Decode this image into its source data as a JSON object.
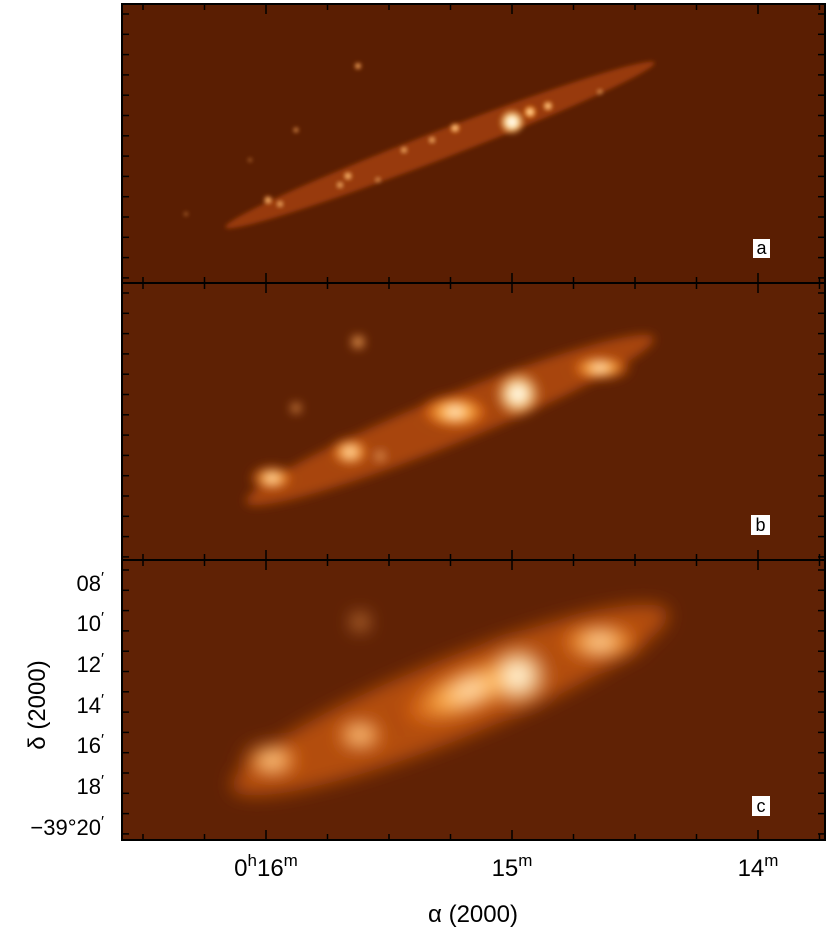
{
  "panels": [
    {
      "id": "a",
      "label": "a"
    },
    {
      "id": "b",
      "label": "b"
    },
    {
      "id": "c",
      "label": "c"
    }
  ],
  "axes": {
    "x_label": "α (2000)",
    "x_ticks": [
      {
        "text": "0",
        "sup1": "h",
        "mid": "16",
        "sup2": "m"
      },
      {
        "text": "15",
        "sup1": "m"
      },
      {
        "text": "14",
        "sup1": "m"
      }
    ],
    "y_label": "δ (2000)",
    "y_ticks": [
      "08",
      "10",
      "12",
      "14",
      "16",
      "18",
      "−39°20"
    ],
    "y_prime": "′"
  },
  "colors": {
    "background": "#5a1e02",
    "frame": "#000000",
    "glow_mid": "#ff8a1a",
    "glow_core": "#ffffff"
  }
}
